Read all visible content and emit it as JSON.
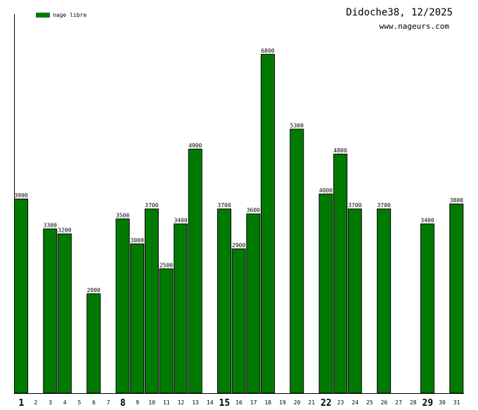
{
  "header": {
    "title": "Didoche38, 12/2025",
    "subtitle": "www.nageurs.com"
  },
  "legend": {
    "items": [
      {
        "label": "nage libre",
        "color": "#007a00"
      }
    ]
  },
  "chart_data": {
    "type": "bar",
    "title": "Didoche38, 12/2025",
    "xlabel": "",
    "ylabel": "",
    "ylim": [
      0,
      7600
    ],
    "grid": false,
    "legend_position": "top-left",
    "categories": [
      "1",
      "2",
      "3",
      "4",
      "5",
      "6",
      "7",
      "8",
      "9",
      "10",
      "11",
      "12",
      "13",
      "14",
      "15",
      "16",
      "17",
      "18",
      "19",
      "20",
      "21",
      "22",
      "23",
      "24",
      "25",
      "26",
      "27",
      "28",
      "29",
      "30",
      "31"
    ],
    "bold_categories": [
      "1",
      "8",
      "15",
      "22",
      "29"
    ],
    "series": [
      {
        "name": "nage libre",
        "color": "#007a00",
        "values": [
          3900,
          null,
          3300,
          3200,
          null,
          2000,
          null,
          3500,
          3000,
          3700,
          2500,
          3400,
          4900,
          null,
          3700,
          2900,
          3600,
          6800,
          null,
          5300,
          null,
          4000,
          4800,
          3700,
          null,
          3700,
          null,
          null,
          3400,
          null,
          3800
        ]
      }
    ]
  }
}
